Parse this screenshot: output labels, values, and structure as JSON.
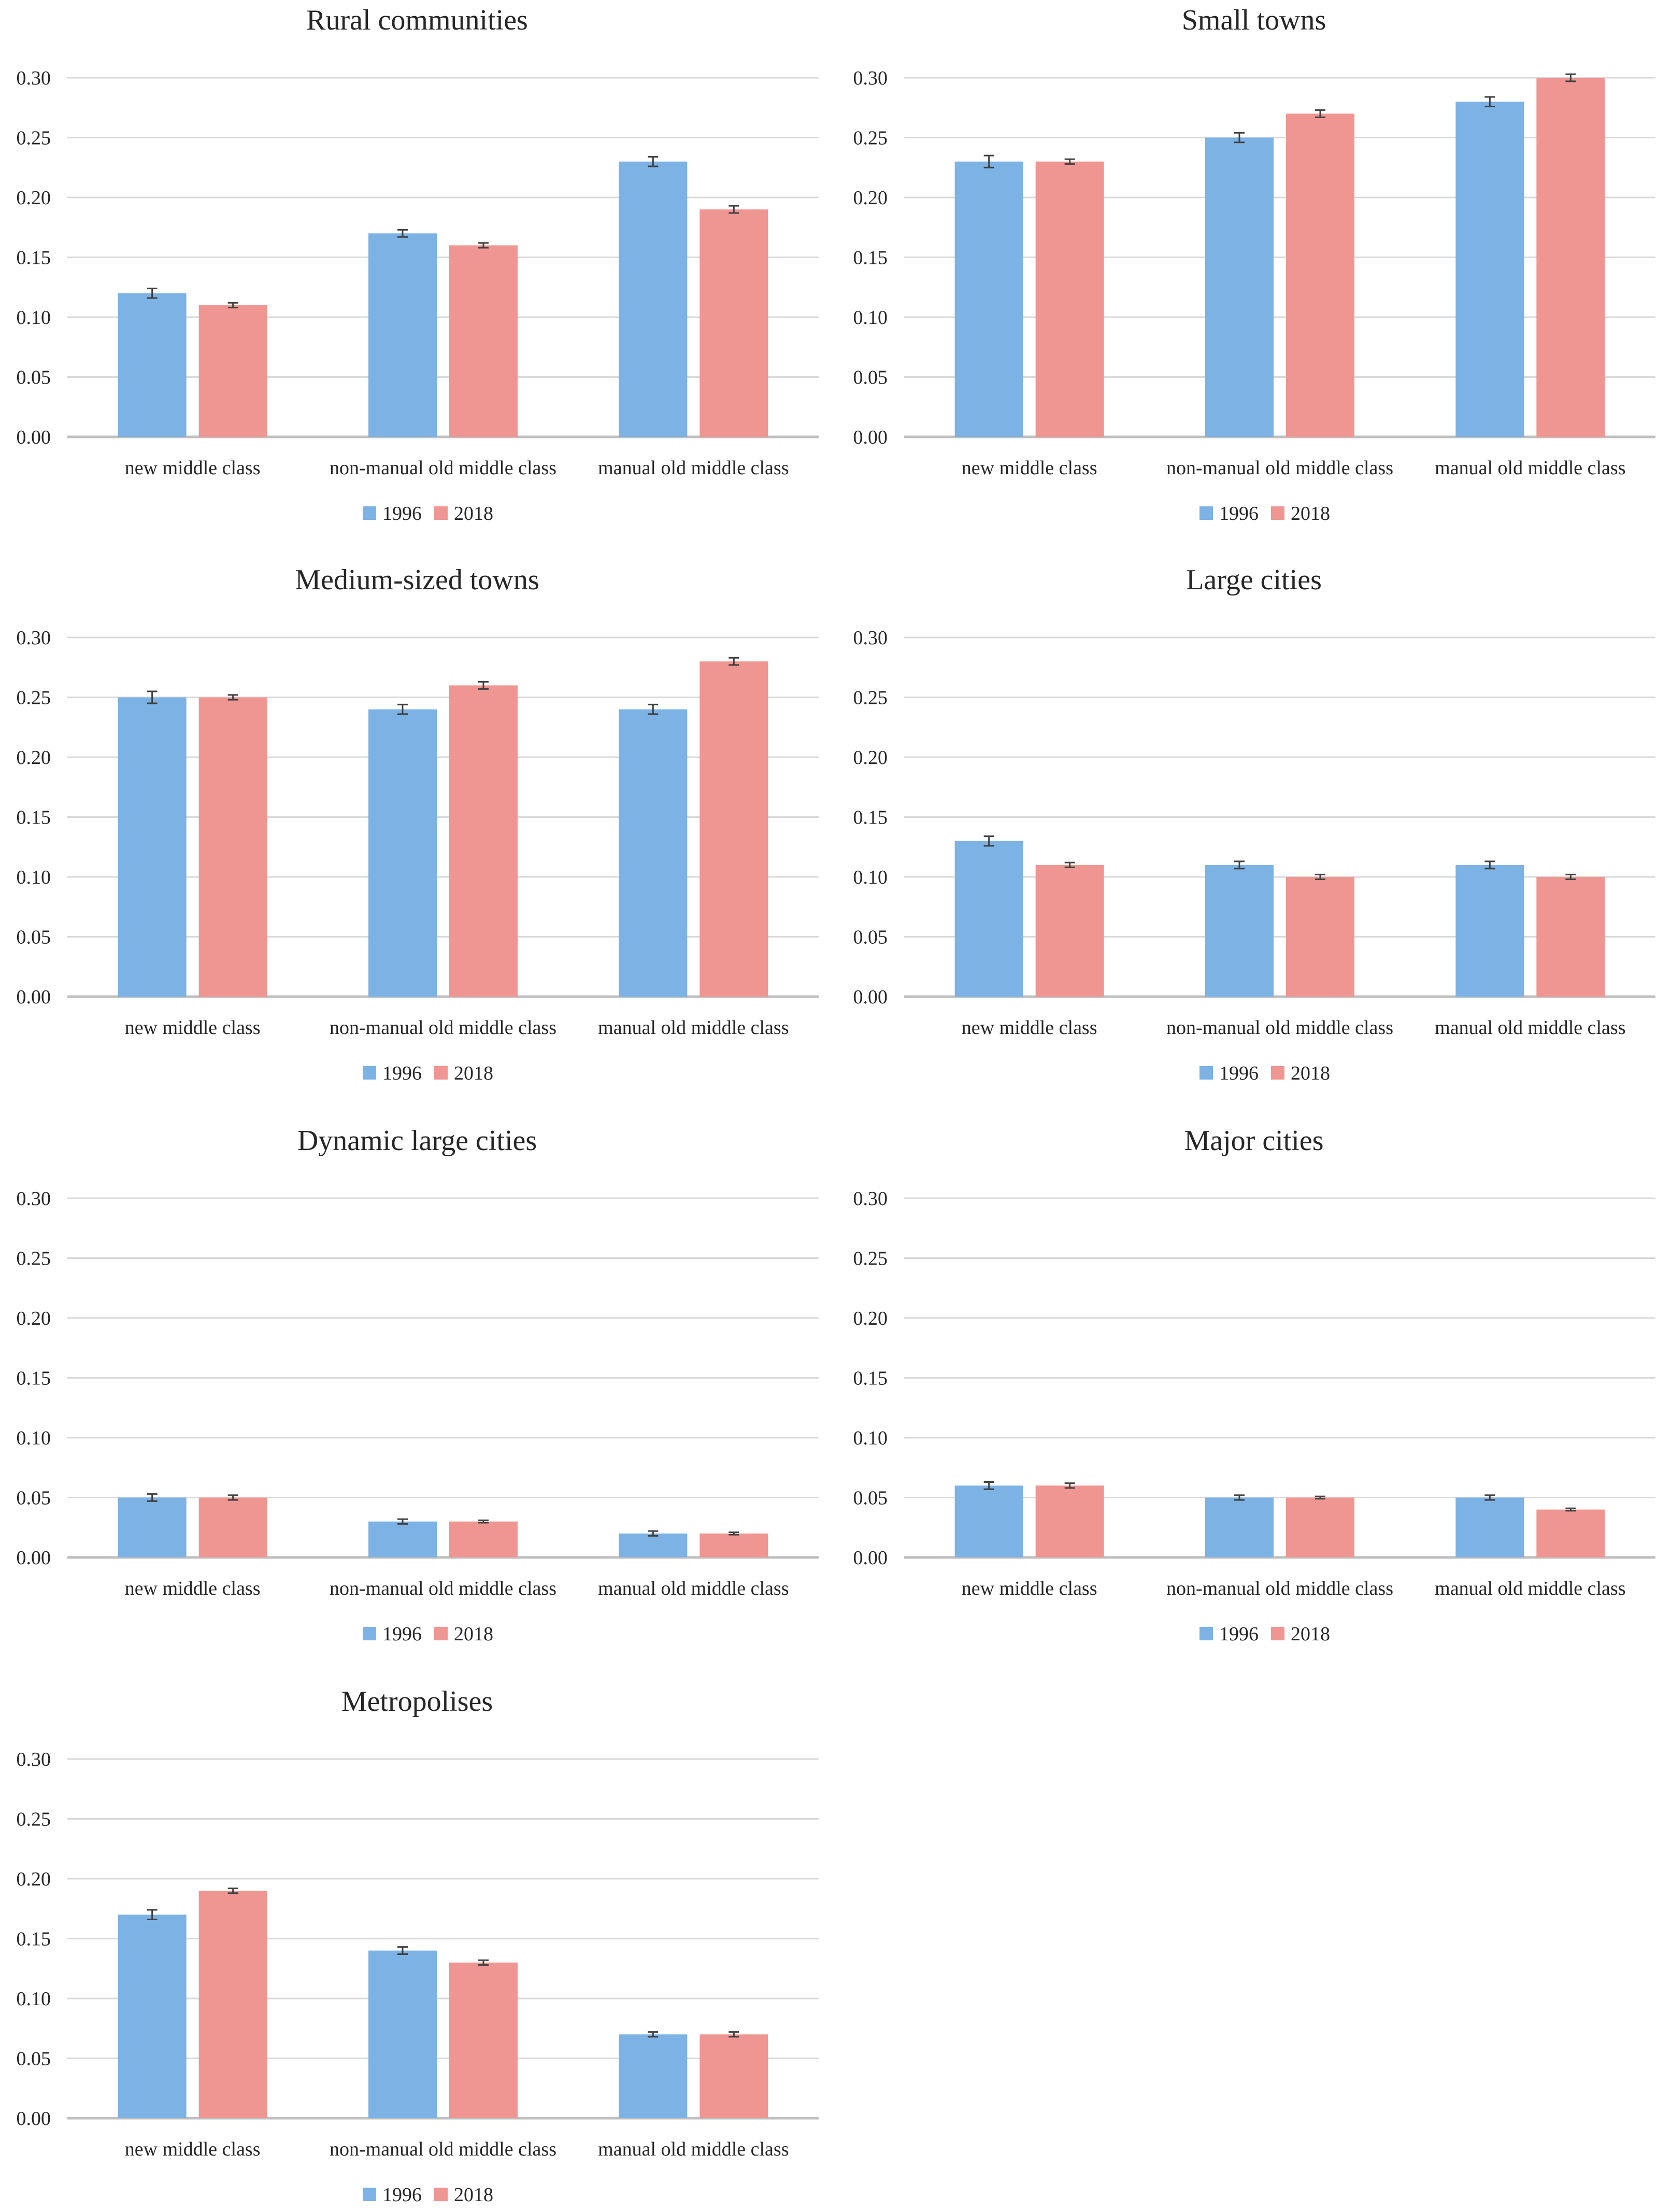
{
  "colors": {
    "series_1996": "#7db2e4",
    "series_2018": "#ef9692",
    "grid": "#d9d9d9",
    "axis": "#bfbfbf",
    "text": "#262626",
    "error_bar": "#404040"
  },
  "chart_data": [
    {
      "type": "bar",
      "title": "Rural communities",
      "categories": [
        "new middle class",
        "non-manual old middle class",
        "manual old middle class"
      ],
      "series": [
        {
          "name": "1996",
          "values": [
            0.12,
            0.17,
            0.23
          ],
          "errors": [
            0.004,
            0.003,
            0.004
          ]
        },
        {
          "name": "2018",
          "values": [
            0.11,
            0.16,
            0.19
          ],
          "errors": [
            0.002,
            0.002,
            0.003
          ]
        }
      ],
      "ylim": [
        0,
        0.3
      ],
      "yticks": [
        "0.00",
        "0.05",
        "0.10",
        "0.15",
        "0.20",
        "0.25",
        "0.30"
      ],
      "legend": "bottom-center"
    },
    {
      "type": "bar",
      "title": "Small towns",
      "categories": [
        "new middle class",
        "non-manual old middle class",
        "manual old middle class"
      ],
      "series": [
        {
          "name": "1996",
          "values": [
            0.23,
            0.25,
            0.28
          ],
          "errors": [
            0.005,
            0.004,
            0.004
          ]
        },
        {
          "name": "2018",
          "values": [
            0.23,
            0.27,
            0.3
          ],
          "errors": [
            0.002,
            0.003,
            0.003
          ]
        }
      ],
      "ylim": [
        0,
        0.3
      ],
      "yticks": [
        "0.00",
        "0.05",
        "0.10",
        "0.15",
        "0.20",
        "0.25",
        "0.30"
      ],
      "legend": "bottom-center"
    },
    {
      "type": "bar",
      "title": "Medium-sized towns",
      "categories": [
        "new middle class",
        "non-manual old middle class",
        "manual old middle class"
      ],
      "series": [
        {
          "name": "1996",
          "values": [
            0.25,
            0.24,
            0.24
          ],
          "errors": [
            0.005,
            0.004,
            0.004
          ]
        },
        {
          "name": "2018",
          "values": [
            0.25,
            0.26,
            0.28
          ],
          "errors": [
            0.002,
            0.003,
            0.003
          ]
        }
      ],
      "ylim": [
        0,
        0.3
      ],
      "yticks": [
        "0.00",
        "0.05",
        "0.10",
        "0.15",
        "0.20",
        "0.25",
        "0.30"
      ],
      "legend": "bottom-center"
    },
    {
      "type": "bar",
      "title": "Large cities",
      "categories": [
        "new middle class",
        "non-manual old middle class",
        "manual old middle class"
      ],
      "series": [
        {
          "name": "1996",
          "values": [
            0.13,
            0.11,
            0.11
          ],
          "errors": [
            0.004,
            0.003,
            0.003
          ]
        },
        {
          "name": "2018",
          "values": [
            0.11,
            0.1,
            0.1
          ],
          "errors": [
            0.002,
            0.002,
            0.002
          ]
        }
      ],
      "ylim": [
        0,
        0.3
      ],
      "yticks": [
        "0.00",
        "0.05",
        "0.10",
        "0.15",
        "0.20",
        "0.25",
        "0.30"
      ],
      "legend": "bottom-center"
    },
    {
      "type": "bar",
      "title": "Dynamic large cities",
      "categories": [
        "new middle class",
        "non-manual old middle class",
        "manual old middle class"
      ],
      "series": [
        {
          "name": "1996",
          "values": [
            0.05,
            0.03,
            0.02
          ],
          "errors": [
            0.003,
            0.002,
            0.002
          ]
        },
        {
          "name": "2018",
          "values": [
            0.05,
            0.03,
            0.02
          ],
          "errors": [
            0.002,
            0.001,
            0.001
          ]
        }
      ],
      "ylim": [
        0,
        0.3
      ],
      "yticks": [
        "0.00",
        "0.05",
        "0.10",
        "0.15",
        "0.20",
        "0.25",
        "0.30"
      ],
      "legend": "bottom-center"
    },
    {
      "type": "bar",
      "title": "Major cities",
      "categories": [
        "new middle class",
        "non-manual old middle class",
        "manual old middle class"
      ],
      "series": [
        {
          "name": "1996",
          "values": [
            0.06,
            0.05,
            0.05
          ],
          "errors": [
            0.003,
            0.002,
            0.002
          ]
        },
        {
          "name": "2018",
          "values": [
            0.06,
            0.05,
            0.04
          ],
          "errors": [
            0.002,
            0.001,
            0.001
          ]
        }
      ],
      "ylim": [
        0,
        0.3
      ],
      "yticks": [
        "0.00",
        "0.05",
        "0.10",
        "0.15",
        "0.20",
        "0.25",
        "0.30"
      ],
      "legend": "bottom-center"
    },
    {
      "type": "bar",
      "title": "Metropolises",
      "categories": [
        "new middle class",
        "non-manual old middle class",
        "manual old middle class"
      ],
      "series": [
        {
          "name": "1996",
          "values": [
            0.17,
            0.14,
            0.07
          ],
          "errors": [
            0.004,
            0.003,
            0.002
          ]
        },
        {
          "name": "2018",
          "values": [
            0.19,
            0.13,
            0.07
          ],
          "errors": [
            0.002,
            0.002,
            0.002
          ]
        }
      ],
      "ylim": [
        0,
        0.3
      ],
      "yticks": [
        "0.00",
        "0.05",
        "0.10",
        "0.15",
        "0.20",
        "0.25",
        "0.30"
      ],
      "legend": "bottom-center"
    }
  ]
}
